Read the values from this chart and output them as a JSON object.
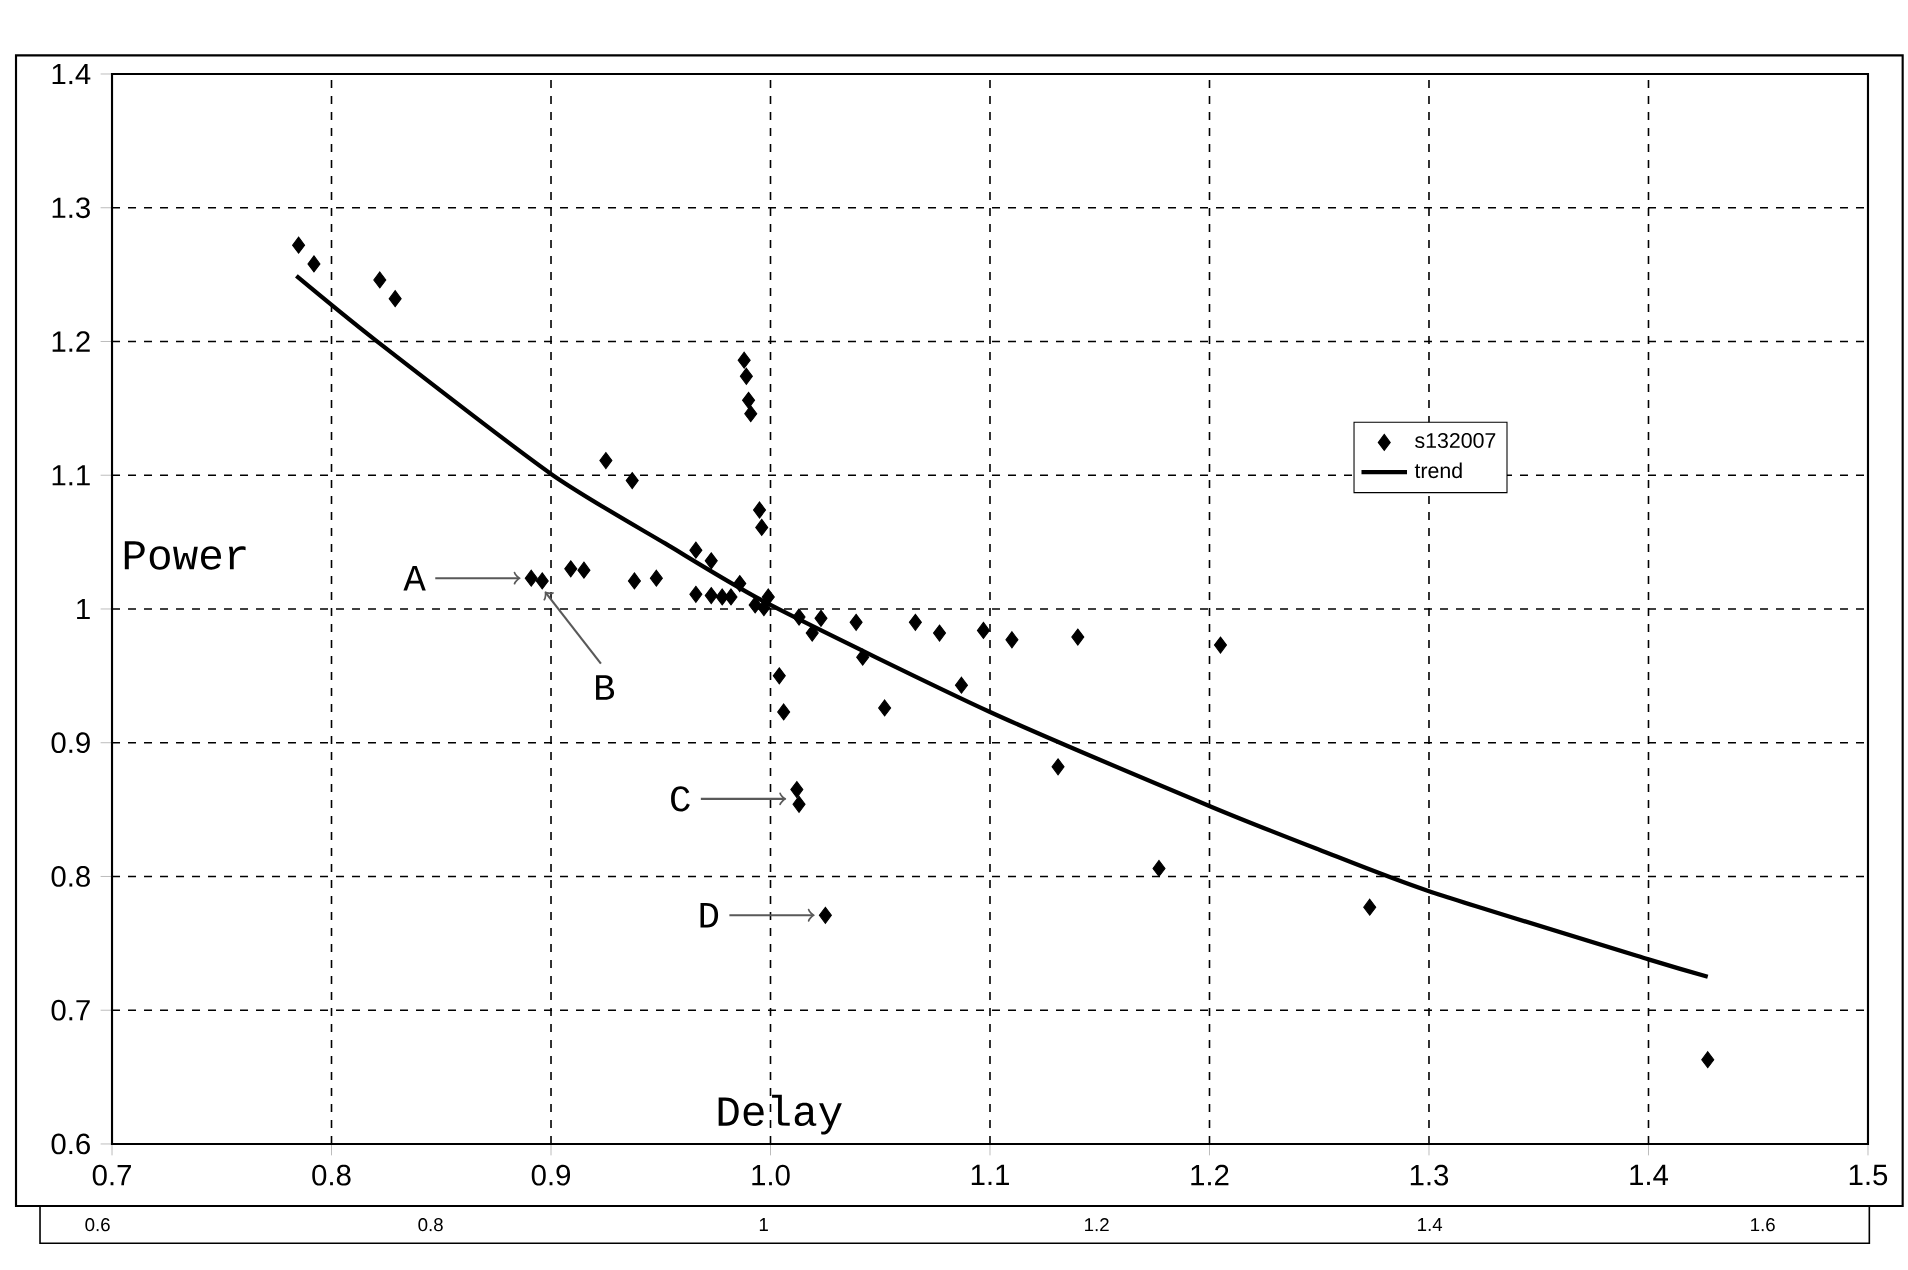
{
  "chart_data": {
    "type": "scatter",
    "xlabel": "Delay",
    "ylabel": "Power",
    "xlim": [
      0.7,
      1.5
    ],
    "xticks": [
      0.7,
      0.8,
      0.9,
      {
        "value": 1.0,
        "label": "1.0"
      },
      1.1,
      1.2,
      1.3,
      1.4,
      1.5
    ],
    "ylim": [
      0.6,
      1.4
    ],
    "yticks": [
      0.6,
      0.7,
      0.8,
      0.9,
      1,
      1.1,
      1.2,
      1.3,
      1.4
    ],
    "x2lim": [
      0.6,
      1.6
    ],
    "x2ticks": [
      0.6,
      0.8,
      1,
      1.2,
      1.4,
      1.6
    ],
    "grid": true,
    "legend": "right",
    "series": [
      {
        "name": "s132007",
        "color": "#000000",
        "marker": "diamond",
        "x": [
          0.785,
          0.792,
          0.822,
          0.829,
          0.988,
          0.989,
          0.99,
          0.991,
          0.925,
          0.937,
          0.995,
          0.996,
          0.966,
          0.973,
          0.891,
          0.896,
          0.909,
          0.915,
          0.938,
          0.948,
          0.966,
          0.973,
          0.978,
          0.982,
          0.986,
          0.993,
          0.999,
          0.997,
          1.013,
          1.023,
          1.019,
          1.039,
          1.042,
          1.004,
          1.006,
          1.066,
          1.077,
          1.097,
          1.11,
          1.14,
          1.205,
          1.087,
          1.052,
          1.131,
          1.012,
          1.013,
          1.025,
          1.177,
          1.273,
          1.427
        ],
        "values": [
          1.272,
          1.258,
          1.246,
          1.232,
          1.186,
          1.174,
          1.156,
          1.146,
          1.111,
          1.096,
          1.074,
          1.061,
          1.044,
          1.036,
          1.023,
          1.021,
          1.03,
          1.029,
          1.021,
          1.023,
          1.011,
          1.01,
          1.009,
          1.009,
          1.019,
          1.003,
          1.009,
          1.001,
          0.994,
          0.993,
          0.982,
          0.99,
          0.964,
          0.95,
          0.923,
          0.99,
          0.982,
          0.984,
          0.977,
          0.979,
          0.973,
          0.943,
          0.926,
          0.882,
          0.865,
          0.854,
          0.771,
          0.806,
          0.777,
          0.663
        ]
      },
      {
        "name": "trend",
        "type": "line",
        "color": "#000000",
        "marker": "none",
        "line_style": "solid",
        "x": [
          0.784,
          0.82,
          0.9,
          0.952,
          1.0,
          1.1,
          1.201,
          1.25,
          1.3,
          1.4,
          1.427
        ],
        "values": [
          1.249,
          1.201,
          1.101,
          1.049,
          1.003,
          0.923,
          0.852,
          0.82,
          0.789,
          0.738,
          0.725
        ]
      }
    ],
    "annotations": [
      {
        "text": "A",
        "x": 0.891,
        "y": 1.023
      },
      {
        "text": "B",
        "x": 0.896,
        "y": 1.021
      },
      {
        "text": "C",
        "x": 1.012,
        "y": 0.858
      },
      {
        "text": "D",
        "x": 1.025,
        "y": 0.771
      }
    ]
  }
}
